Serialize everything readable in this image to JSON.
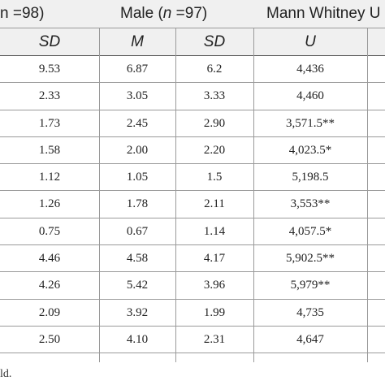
{
  "header": {
    "group1": {
      "text": "n =98)"
    },
    "group2": {
      "prefix": "Male (",
      "n_var": "n",
      "suffix": " =97)"
    },
    "group3": {
      "text": "Mann Whitney U"
    }
  },
  "subheader": [
    "SD",
    "M",
    "SD",
    "U"
  ],
  "rows": [
    {
      "sd_f": "9.53",
      "m_m": "6.87",
      "sd_m": "6.2",
      "u": "4,436"
    },
    {
      "sd_f": "2.33",
      "m_m": "3.05",
      "sd_m": "3.33",
      "u": "4,460"
    },
    {
      "sd_f": "1.73",
      "m_m": "2.45",
      "sd_m": "2.90",
      "u": "3,571.5**"
    },
    {
      "sd_f": "1.58",
      "m_m": "2.00",
      "sd_m": "2.20",
      "u": "4,023.5*"
    },
    {
      "sd_f": "1.12",
      "m_m": "1.05",
      "sd_m": "1.5",
      "u": "5,198.5"
    },
    {
      "sd_f": "1.26",
      "m_m": "1.78",
      "sd_m": "2.11",
      "u": "3,553**"
    },
    {
      "sd_f": "0.75",
      "m_m": "0.67",
      "sd_m": "1.14",
      "u": "4,057.5*"
    },
    {
      "sd_f": "4.46",
      "m_m": "4.58",
      "sd_m": "4.17",
      "u": "5,902.5**"
    },
    {
      "sd_f": "4.26",
      "m_m": "5.42",
      "sd_m": "3.96",
      "u": "5,979**"
    },
    {
      "sd_f": "2.09",
      "m_m": "3.92",
      "sd_m": "1.99",
      "u": "4,735"
    },
    {
      "sd_f": "2.50",
      "m_m": "4.10",
      "sd_m": "2.31",
      "u": "4,647"
    }
  ],
  "footnote": "ld."
}
